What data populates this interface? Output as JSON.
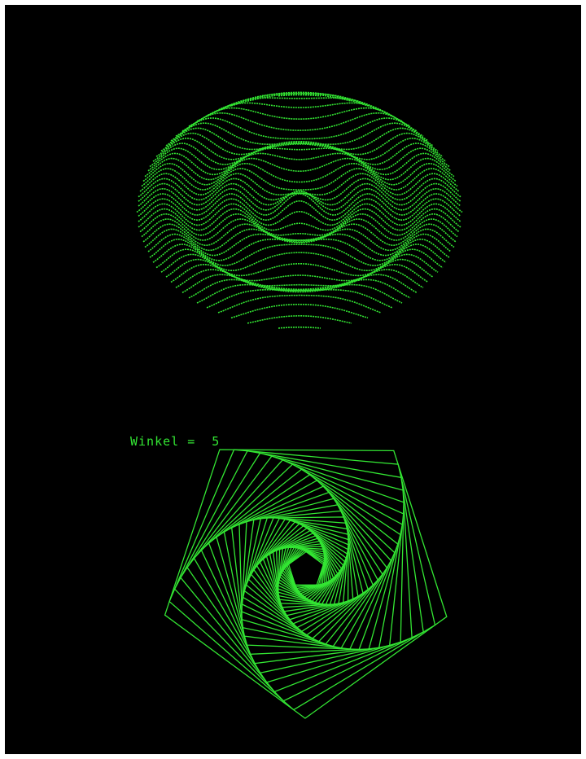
{
  "screen": {
    "background": "#000000",
    "phosphor": "#33e633"
  },
  "label": {
    "text": "Winkel =  5"
  },
  "spiral": {
    "sides": 5,
    "angle_deg": 5
  }
}
